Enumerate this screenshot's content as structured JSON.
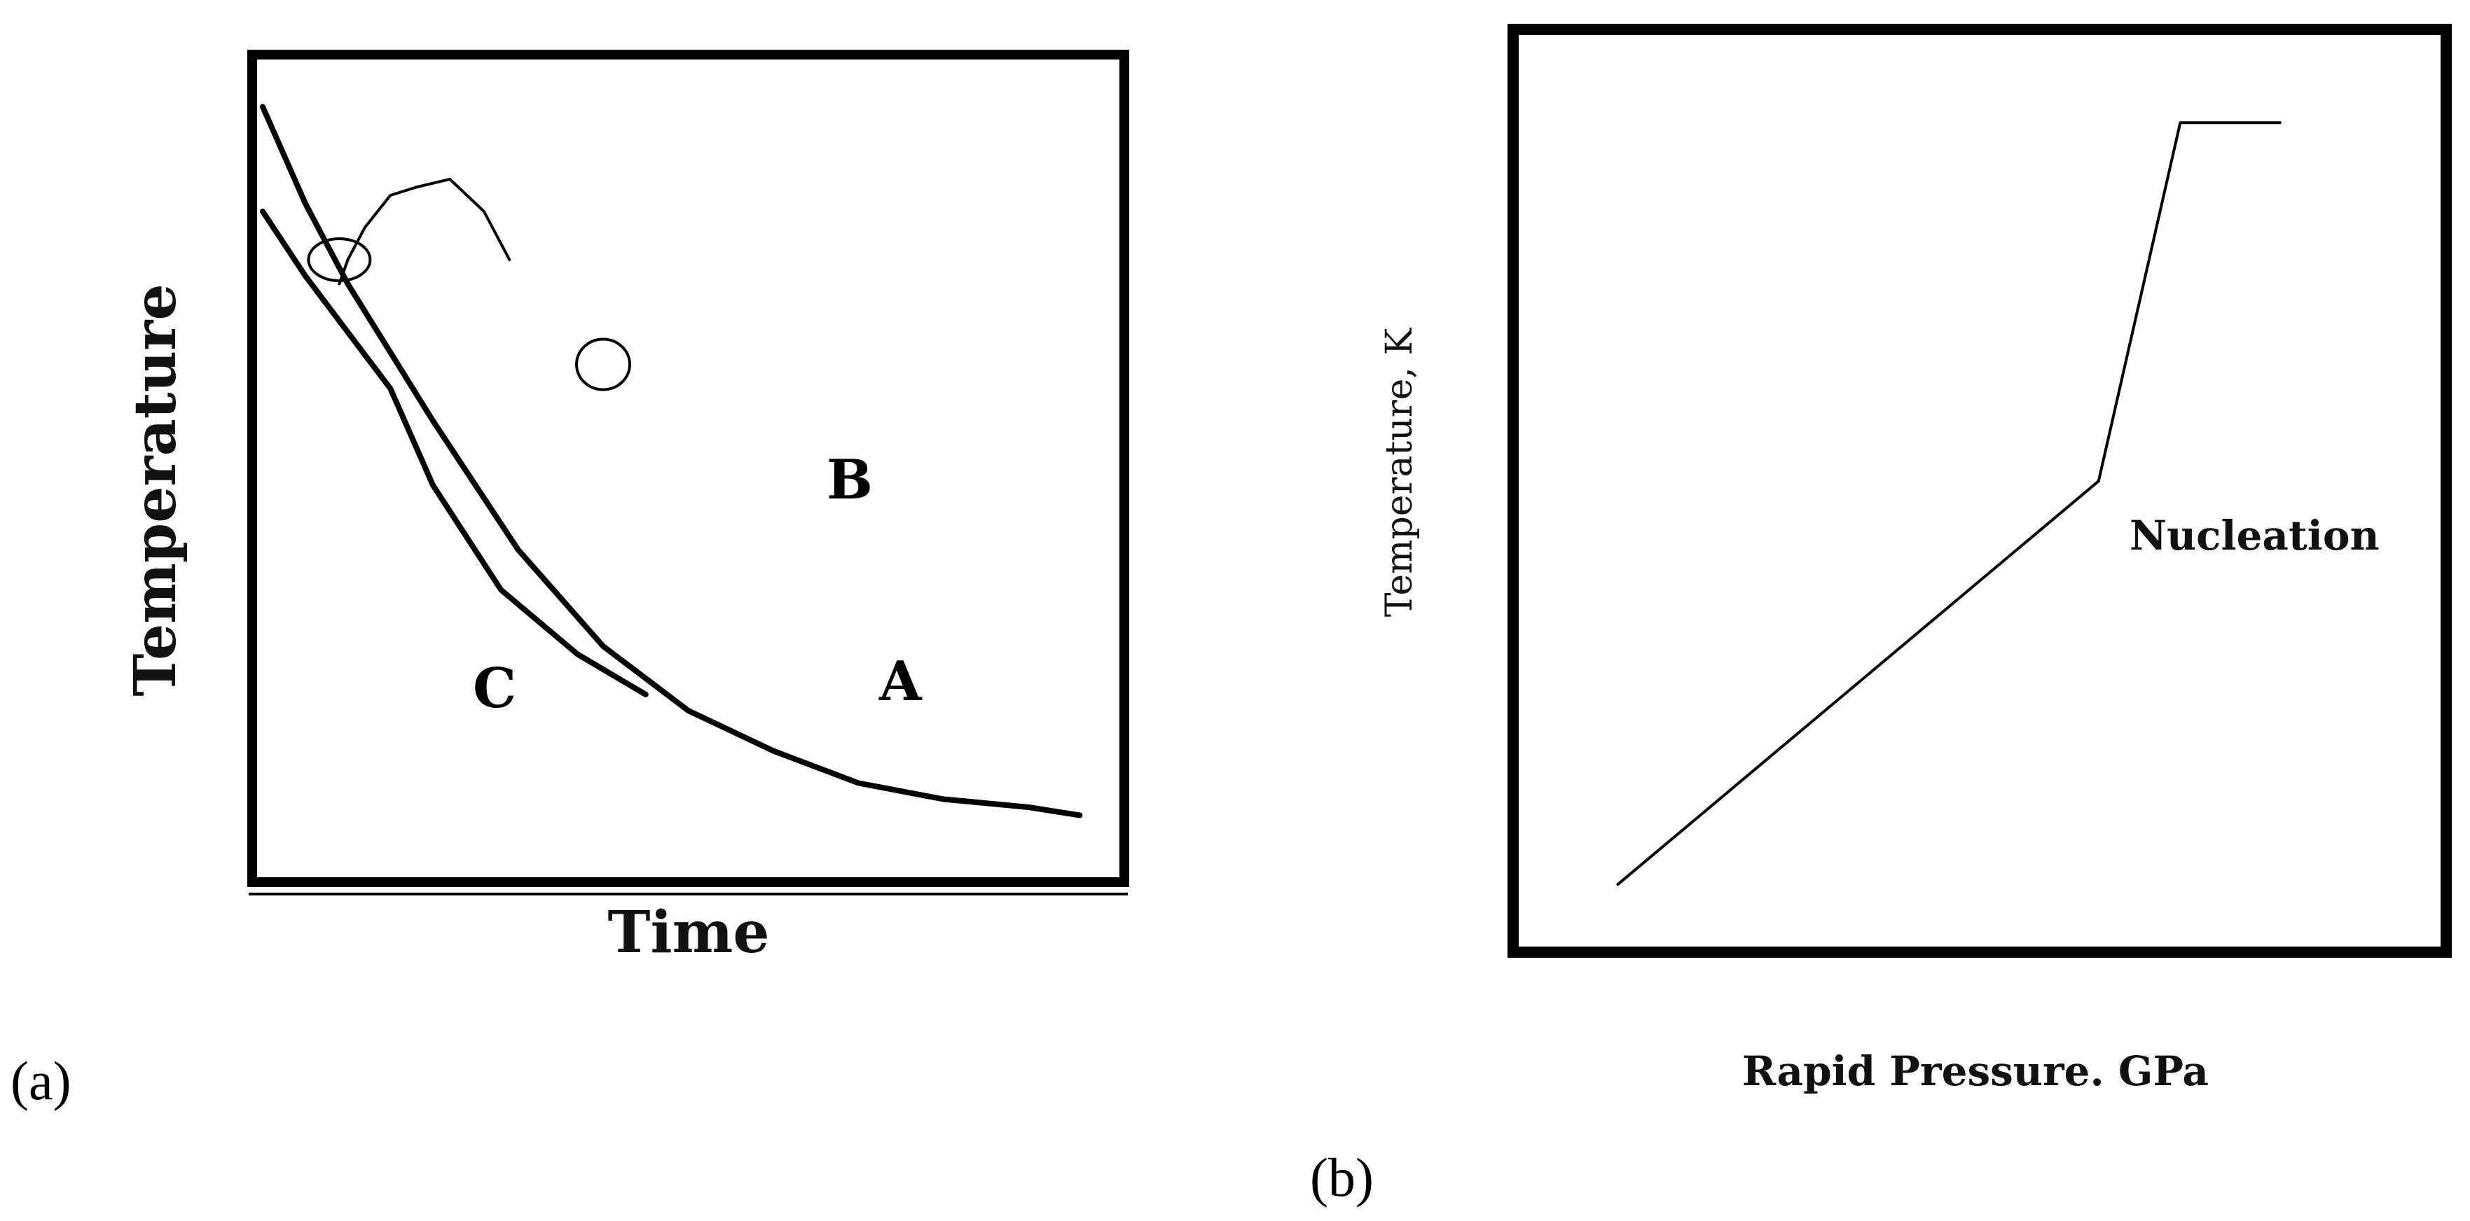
{
  "panels": {
    "a_label": "(a)",
    "b_label": "(b)"
  },
  "chart_data": [
    {
      "type": "line",
      "panel": "(a)",
      "xlabel": "Time",
      "ylabel": "Temperature",
      "grid": false,
      "series": [
        {
          "name": "A",
          "x": [
            0.0,
            0.05,
            0.1,
            0.15,
            0.2,
            0.28,
            0.37,
            0.45
          ],
          "y": [
            0.82,
            0.74,
            0.67,
            0.6,
            0.48,
            0.35,
            0.27,
            0.22
          ]
        },
        {
          "name": "B",
          "x": [
            0.09,
            0.1,
            0.12,
            0.15,
            0.18,
            0.22,
            0.26,
            0.29
          ],
          "y": [
            0.73,
            0.76,
            0.8,
            0.84,
            0.85,
            0.86,
            0.82,
            0.76
          ]
        },
        {
          "name": "C",
          "x": [
            0.0,
            0.05,
            0.1,
            0.2,
            0.3,
            0.4,
            0.5,
            0.6,
            0.7,
            0.8,
            0.9,
            0.96
          ],
          "y": [
            0.95,
            0.83,
            0.73,
            0.56,
            0.4,
            0.28,
            0.2,
            0.15,
            0.11,
            0.09,
            0.08,
            0.07
          ]
        }
      ],
      "markers": [
        {
          "series": "C",
          "x": 0.09,
          "y": 0.76
        },
        {
          "series": "A",
          "x": 0.4,
          "y": 0.63
        }
      ],
      "annotations": [
        "A",
        "B",
        "C"
      ]
    },
    {
      "type": "line",
      "panel": "(b)",
      "xlabel": "Rapid Pressure. GPa",
      "ylabel": "Temperature, K",
      "grid": false,
      "series": [
        {
          "name": "",
          "x": [
            0.1,
            0.63,
            0.72,
            0.83
          ],
          "y": [
            0.06,
            0.51,
            0.91,
            0.91
          ]
        }
      ],
      "annotations": [
        "Nucleation"
      ]
    }
  ]
}
